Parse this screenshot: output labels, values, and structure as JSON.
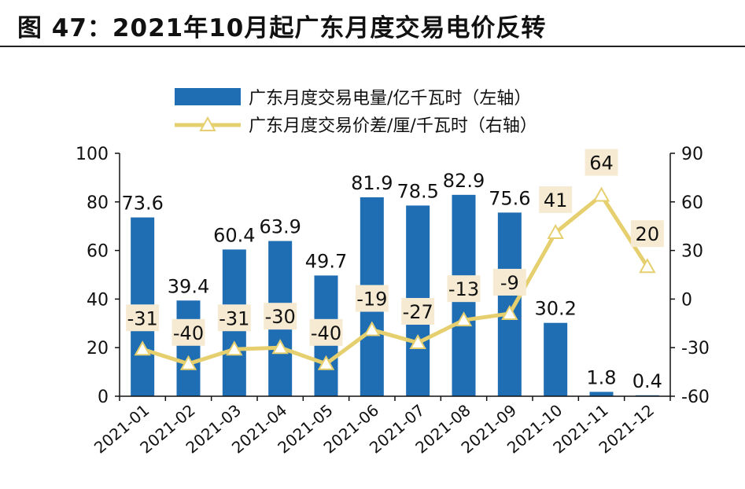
{
  "figure": {
    "title": "图 47：2021年10月起广东月度交易电价反转"
  },
  "colors": {
    "bar": "#1f6db3",
    "line": "#e6cf6e",
    "label_box": "#f6ebd2"
  },
  "chart_data": {
    "type": "bar",
    "categories": [
      "2021-01",
      "2021-02",
      "2021-03",
      "2021-04",
      "2021-05",
      "2021-06",
      "2021-07",
      "2021-08",
      "2021-09",
      "2021-10",
      "2021-11",
      "2021-12"
    ],
    "series": [
      {
        "name": "广东月度交易电量/亿千瓦时（左轴）",
        "type": "bar",
        "axis": "left",
        "values": [
          73.6,
          39.4,
          60.4,
          63.9,
          49.7,
          81.9,
          78.5,
          82.9,
          75.6,
          30.2,
          1.8,
          0.4
        ]
      },
      {
        "name": "广东月度交易价差/厘/千瓦时（右轴）",
        "type": "line",
        "axis": "right",
        "marker": "triangle",
        "values": [
          -31,
          -40,
          -31,
          -30,
          -40,
          -19,
          -27,
          -13,
          -9,
          41,
          64,
          20
        ]
      }
    ],
    "y_left": {
      "min": 0,
      "max": 100,
      "ticks": [
        0,
        20,
        40,
        60,
        80,
        100
      ]
    },
    "y_right": {
      "min": -60,
      "max": 90,
      "ticks": [
        -60,
        -30,
        0,
        30,
        60,
        90
      ]
    },
    "legend_position": "top",
    "grid": false
  }
}
